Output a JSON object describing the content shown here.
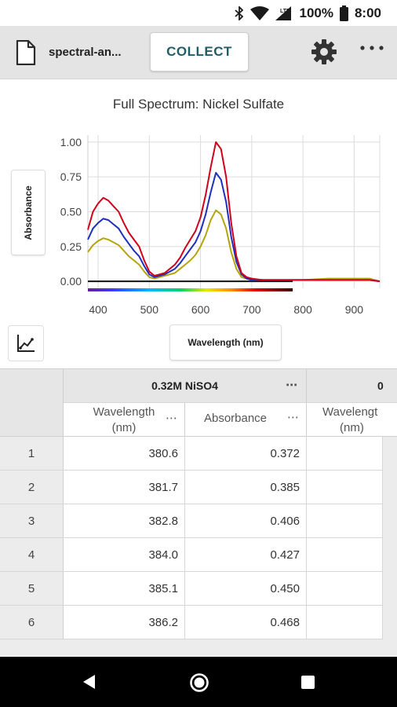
{
  "status": {
    "battery": "100%",
    "time": "8:00",
    "network": "LTE"
  },
  "app_bar": {
    "file_name": "spectral-an...",
    "collect_label": "COLLECT",
    "icons": [
      "file-icon",
      "gear-icon",
      "more-vert-icon"
    ]
  },
  "chart": {
    "y_axis_button": "Absorbance",
    "x_axis_button": "Wavelength (nm)"
  },
  "chart_data": {
    "type": "line",
    "title": "Full Spectrum: Nickel Sulfate",
    "xlabel": "Wavelength (nm)",
    "ylabel": "Absorbance",
    "xlim": [
      380,
      950
    ],
    "ylim": [
      -0.05,
      1.05
    ],
    "x_ticks": [
      "400",
      "500",
      "600",
      "700",
      "800",
      "900"
    ],
    "y_ticks": [
      "0.00",
      "0.25",
      "0.50",
      "0.75",
      "1.00"
    ],
    "grid": true,
    "baseline_x_range": [
      380,
      780
    ],
    "series": [
      {
        "color": "#d0021b",
        "x": [
          380,
          390,
          400,
          410,
          420,
          430,
          440,
          450,
          460,
          470,
          480,
          490,
          500,
          510,
          520,
          530,
          540,
          550,
          560,
          570,
          580,
          590,
          600,
          610,
          620,
          630,
          640,
          650,
          660,
          670,
          680,
          690,
          700,
          720,
          750,
          800,
          850,
          900,
          930,
          950
        ],
        "values": [
          0.37,
          0.5,
          0.56,
          0.6,
          0.58,
          0.54,
          0.5,
          0.42,
          0.35,
          0.3,
          0.25,
          0.15,
          0.07,
          0.04,
          0.05,
          0.06,
          0.09,
          0.12,
          0.17,
          0.24,
          0.3,
          0.36,
          0.46,
          0.62,
          0.82,
          1.0,
          0.95,
          0.75,
          0.42,
          0.18,
          0.06,
          0.03,
          0.02,
          0.01,
          0.01,
          0.01,
          0.01,
          0.01,
          0.01,
          0.0
        ]
      },
      {
        "color": "#1f2fbd",
        "x": [
          380,
          390,
          400,
          410,
          420,
          430,
          440,
          450,
          460,
          470,
          480,
          490,
          500,
          510,
          520,
          530,
          540,
          550,
          560,
          570,
          580,
          590,
          600,
          610,
          620,
          630,
          640,
          650,
          660,
          670,
          680,
          690,
          700,
          720,
          750,
          800,
          850,
          900,
          930,
          950
        ],
        "values": [
          0.3,
          0.38,
          0.42,
          0.45,
          0.44,
          0.41,
          0.38,
          0.32,
          0.27,
          0.22,
          0.18,
          0.11,
          0.05,
          0.03,
          0.04,
          0.05,
          0.07,
          0.09,
          0.13,
          0.18,
          0.23,
          0.28,
          0.36,
          0.48,
          0.64,
          0.78,
          0.73,
          0.57,
          0.32,
          0.14,
          0.05,
          0.02,
          0.01,
          0.01,
          0.01,
          0.01,
          0.01,
          0.01,
          0.01,
          0.0
        ]
      },
      {
        "color": "#b5a50c",
        "x": [
          380,
          390,
          400,
          410,
          420,
          430,
          440,
          450,
          460,
          470,
          480,
          490,
          500,
          510,
          520,
          530,
          540,
          550,
          560,
          570,
          580,
          590,
          600,
          610,
          620,
          630,
          640,
          650,
          660,
          670,
          680,
          690,
          700,
          720,
          750,
          800,
          850,
          900,
          930,
          950
        ],
        "values": [
          0.21,
          0.26,
          0.29,
          0.31,
          0.3,
          0.28,
          0.26,
          0.22,
          0.18,
          0.15,
          0.12,
          0.07,
          0.03,
          0.02,
          0.03,
          0.04,
          0.05,
          0.06,
          0.09,
          0.12,
          0.15,
          0.19,
          0.25,
          0.33,
          0.44,
          0.51,
          0.48,
          0.38,
          0.21,
          0.09,
          0.03,
          0.02,
          0.01,
          0.01,
          0.01,
          0.01,
          0.02,
          0.02,
          0.02,
          0.0
        ]
      }
    ]
  },
  "table": {
    "group_header": "0.32M NiSO4",
    "group_header_2": "0",
    "columns": [
      {
        "line1": "Wavelength",
        "line2": "(nm)"
      },
      {
        "line1": "Absorbance"
      },
      {
        "line1": "Wavelengt",
        "line2": "(nm)"
      }
    ],
    "more_menu": "⋯",
    "rows": [
      {
        "n": "1",
        "wavelength": "380.6",
        "absorbance": "0.372"
      },
      {
        "n": "2",
        "wavelength": "381.7",
        "absorbance": "0.385"
      },
      {
        "n": "3",
        "wavelength": "382.8",
        "absorbance": "0.406"
      },
      {
        "n": "4",
        "wavelength": "384.0",
        "absorbance": "0.427"
      },
      {
        "n": "5",
        "wavelength": "385.1",
        "absorbance": "0.450"
      },
      {
        "n": "6",
        "wavelength": "386.2",
        "absorbance": "0.468"
      }
    ]
  }
}
